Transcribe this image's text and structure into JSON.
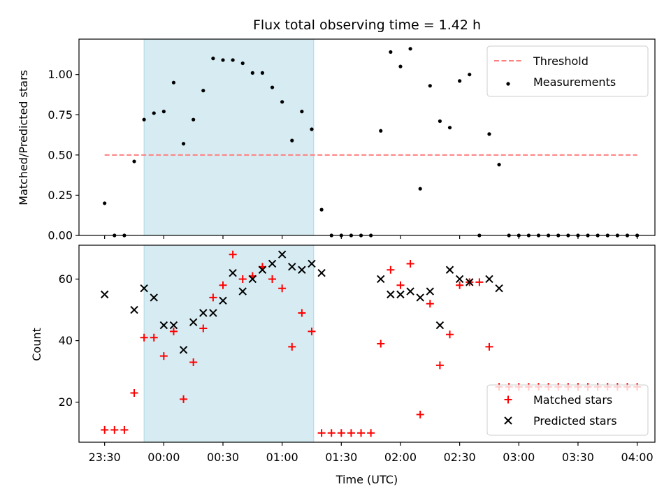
{
  "chart_data": [
    {
      "type": "scatter",
      "title": "Flux total observing time = 1.42 h",
      "xlabel": "",
      "ylabel": "Matched/Predicted stars",
      "ylim": [
        0,
        1.22
      ],
      "xlim": [
        "23:17",
        "04:09"
      ],
      "yticks": [
        "0.00",
        "0.25",
        "0.50",
        "0.75",
        "1.00"
      ],
      "grid": false,
      "legend_position": "top-right",
      "shaded_interval": {
        "start": "23:50",
        "end": "01:16",
        "color": "#add8e6"
      },
      "threshold": {
        "name": "Threshold",
        "value": 0.5,
        "x_start": "23:30",
        "x_end": "04:00",
        "color": "#ff7f7f",
        "style": "dashed"
      },
      "series": [
        {
          "name": "Measurements",
          "marker": "dot",
          "color": "#000000",
          "points": [
            [
              "23:30",
              0.2
            ],
            [
              "23:35",
              0.0
            ],
            [
              "23:40",
              0.0
            ],
            [
              "23:45",
              0.46
            ],
            [
              "23:50",
              0.72
            ],
            [
              "23:55",
              0.76
            ],
            [
              "00:00",
              0.77
            ],
            [
              "00:05",
              0.95
            ],
            [
              "00:10",
              0.57
            ],
            [
              "00:15",
              0.72
            ],
            [
              "00:20",
              0.9
            ],
            [
              "00:25",
              1.1
            ],
            [
              "00:30",
              1.09
            ],
            [
              "00:35",
              1.09
            ],
            [
              "00:40",
              1.07
            ],
            [
              "00:45",
              1.01
            ],
            [
              "00:50",
              1.01
            ],
            [
              "00:55",
              0.92
            ],
            [
              "01:00",
              0.83
            ],
            [
              "01:05",
              0.59
            ],
            [
              "01:10",
              0.77
            ],
            [
              "01:15",
              0.66
            ],
            [
              "01:20",
              0.16
            ],
            [
              "01:25",
              0.0
            ],
            [
              "01:30",
              0.0
            ],
            [
              "01:35",
              0.0
            ],
            [
              "01:40",
              0.0
            ],
            [
              "01:45",
              0.0
            ],
            [
              "01:50",
              0.65
            ],
            [
              "01:55",
              1.14
            ],
            [
              "02:00",
              1.05
            ],
            [
              "02:05",
              1.16
            ],
            [
              "02:10",
              0.29
            ],
            [
              "02:15",
              0.93
            ],
            [
              "02:20",
              0.71
            ],
            [
              "02:25",
              0.67
            ],
            [
              "02:30",
              0.96
            ],
            [
              "02:35",
              1.0
            ],
            [
              "02:40",
              0.0
            ],
            [
              "02:45",
              0.63
            ],
            [
              "02:50",
              0.44
            ],
            [
              "02:55",
              0.0
            ],
            [
              "03:00",
              0.0
            ],
            [
              "03:05",
              0.0
            ],
            [
              "03:10",
              0.0
            ],
            [
              "03:15",
              0.0
            ],
            [
              "03:20",
              0.0
            ],
            [
              "03:25",
              0.0
            ],
            [
              "03:30",
              0.0
            ],
            [
              "03:35",
              0.0
            ],
            [
              "03:40",
              0.0
            ],
            [
              "03:45",
              0.0
            ],
            [
              "03:50",
              0.0
            ],
            [
              "03:55",
              0.0
            ],
            [
              "04:00",
              0.0
            ]
          ]
        }
      ]
    },
    {
      "type": "scatter",
      "title": "",
      "xlabel": "Time (UTC)",
      "ylabel": "Count",
      "ylim": [
        7,
        71
      ],
      "xlim": [
        "23:17",
        "04:09"
      ],
      "yticks": [
        "20",
        "40",
        "60"
      ],
      "xticks": [
        "23:30",
        "00:00",
        "00:30",
        "01:00",
        "01:30",
        "02:00",
        "02:30",
        "03:00",
        "03:30",
        "04:00"
      ],
      "grid": false,
      "legend_position": "bottom-right",
      "shaded_interval": {
        "start": "23:50",
        "end": "01:16",
        "color": "#add8e6"
      },
      "series": [
        {
          "name": "Matched stars",
          "marker": "plus",
          "color": "#ff0000",
          "points": [
            [
              "23:30",
              11
            ],
            [
              "23:35",
              11
            ],
            [
              "23:40",
              11
            ],
            [
              "23:45",
              23
            ],
            [
              "23:50",
              41
            ],
            [
              "23:55",
              41
            ],
            [
              "00:00",
              35
            ],
            [
              "00:05",
              43
            ],
            [
              "00:10",
              21
            ],
            [
              "00:15",
              33
            ],
            [
              "00:20",
              44
            ],
            [
              "00:25",
              54
            ],
            [
              "00:30",
              58
            ],
            [
              "00:35",
              68
            ],
            [
              "00:40",
              60
            ],
            [
              "00:45",
              61
            ],
            [
              "00:50",
              64
            ],
            [
              "00:55",
              60
            ],
            [
              "01:00",
              57
            ],
            [
              "01:05",
              38
            ],
            [
              "01:10",
              49
            ],
            [
              "01:15",
              43
            ],
            [
              "01:20",
              10
            ],
            [
              "01:25",
              10
            ],
            [
              "01:30",
              10
            ],
            [
              "01:35",
              10
            ],
            [
              "01:40",
              10
            ],
            [
              "01:45",
              10
            ],
            [
              "01:50",
              39
            ],
            [
              "01:55",
              63
            ],
            [
              "02:00",
              58
            ],
            [
              "02:05",
              65
            ],
            [
              "02:10",
              16
            ],
            [
              "02:15",
              52
            ],
            [
              "02:20",
              32
            ],
            [
              "02:25",
              42
            ],
            [
              "02:30",
              58
            ],
            [
              "02:35",
              59
            ],
            [
              "02:40",
              59
            ],
            [
              "02:45",
              38
            ],
            [
              "02:50",
              25
            ],
            [
              "02:55",
              25
            ],
            [
              "03:00",
              25
            ],
            [
              "03:05",
              25
            ],
            [
              "03:10",
              25
            ],
            [
              "03:15",
              25
            ],
            [
              "03:20",
              25
            ],
            [
              "03:25",
              25
            ],
            [
              "03:30",
              25
            ],
            [
              "03:35",
              25
            ],
            [
              "03:40",
              25
            ],
            [
              "03:45",
              25
            ],
            [
              "03:50",
              25
            ],
            [
              "03:55",
              25
            ],
            [
              "04:00",
              25
            ]
          ]
        },
        {
          "name": "Predicted stars",
          "marker": "x",
          "color": "#000000",
          "points": [
            [
              "23:30",
              55
            ],
            [
              "23:45",
              50
            ],
            [
              "23:50",
              57
            ],
            [
              "23:55",
              54
            ],
            [
              "00:00",
              45
            ],
            [
              "00:05",
              45
            ],
            [
              "00:10",
              37
            ],
            [
              "00:15",
              46
            ],
            [
              "00:20",
              49
            ],
            [
              "00:25",
              49
            ],
            [
              "00:30",
              53
            ],
            [
              "00:35",
              62
            ],
            [
              "00:40",
              56
            ],
            [
              "00:45",
              60
            ],
            [
              "00:50",
              63
            ],
            [
              "00:55",
              65
            ],
            [
              "01:00",
              68
            ],
            [
              "01:05",
              64
            ],
            [
              "01:10",
              63
            ],
            [
              "01:15",
              65
            ],
            [
              "01:20",
              62
            ],
            [
              "01:50",
              60
            ],
            [
              "01:55",
              55
            ],
            [
              "02:00",
              55
            ],
            [
              "02:05",
              56
            ],
            [
              "02:10",
              54
            ],
            [
              "02:15",
              56
            ],
            [
              "02:20",
              45
            ],
            [
              "02:25",
              63
            ],
            [
              "02:30",
              60
            ],
            [
              "02:35",
              59
            ],
            [
              "02:45",
              60
            ],
            [
              "02:50",
              57
            ]
          ]
        }
      ]
    }
  ]
}
